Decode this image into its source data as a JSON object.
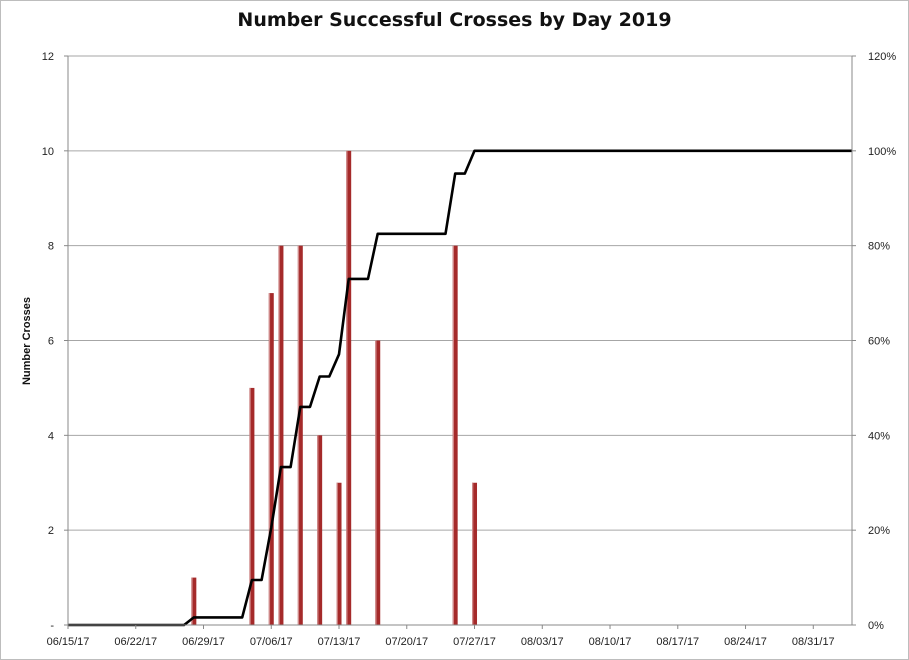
{
  "chart_data": {
    "type": "bar",
    "title": "Number Successful Crosses by Day 2019",
    "ylabel": "Number Crosses",
    "y2label": "",
    "ylim": [
      0,
      12
    ],
    "y2lim": [
      0,
      1.2
    ],
    "y_ticks": [
      0,
      2,
      4,
      6,
      8,
      10,
      12
    ],
    "y_tick_labels": [
      "-",
      "2",
      "4",
      "6",
      "8",
      "10",
      "12"
    ],
    "y2_ticks": [
      0,
      0.2,
      0.4,
      0.6,
      0.8,
      1.0,
      1.2
    ],
    "y2_tick_labels": [
      "0%",
      "20%",
      "40%",
      "60%",
      "80%",
      "100%",
      "120%"
    ],
    "x_range_days": [
      "2017-06-15",
      "2017-09-04"
    ],
    "x_tick_labels": [
      "06/15/17",
      "06/22/17",
      "06/29/17",
      "07/06/17",
      "07/13/17",
      "07/20/17",
      "07/27/17",
      "08/03/17",
      "08/10/17",
      "08/17/17",
      "08/24/17",
      "08/31/17"
    ],
    "x_tick_dates": [
      "2017-06-15",
      "2017-06-22",
      "2017-06-29",
      "2017-07-06",
      "2017-07-13",
      "2017-07-20",
      "2017-07-27",
      "2017-08-03",
      "2017-08-10",
      "2017-08-17",
      "2017-08-24",
      "2017-08-31"
    ],
    "grid": true,
    "series": [
      {
        "type": "bar",
        "color": "#a52a2a",
        "points": [
          {
            "x": "2017-06-28",
            "y": 1
          },
          {
            "x": "2017-07-04",
            "y": 5
          },
          {
            "x": "2017-07-06",
            "y": 7
          },
          {
            "x": "2017-07-07",
            "y": 8
          },
          {
            "x": "2017-07-09",
            "y": 8
          },
          {
            "x": "2017-07-11",
            "y": 4
          },
          {
            "x": "2017-07-13",
            "y": 3
          },
          {
            "x": "2017-07-14",
            "y": 10
          },
          {
            "x": "2017-07-17",
            "y": 6
          },
          {
            "x": "2017-07-25",
            "y": 8
          },
          {
            "x": "2017-07-27",
            "y": 3
          }
        ]
      },
      {
        "type": "line",
        "axis": "right",
        "color": "#000000",
        "points": [
          {
            "x": "2017-06-15",
            "y": 0.0
          },
          {
            "x": "2017-06-27",
            "y": 0.0
          },
          {
            "x": "2017-06-28",
            "y": 0.016
          },
          {
            "x": "2017-07-03",
            "y": 0.016
          },
          {
            "x": "2017-07-04",
            "y": 0.095
          },
          {
            "x": "2017-07-05",
            "y": 0.095
          },
          {
            "x": "2017-07-06",
            "y": 0.206
          },
          {
            "x": "2017-07-07",
            "y": 0.333
          },
          {
            "x": "2017-07-08",
            "y": 0.333
          },
          {
            "x": "2017-07-09",
            "y": 0.46
          },
          {
            "x": "2017-07-10",
            "y": 0.46
          },
          {
            "x": "2017-07-11",
            "y": 0.524
          },
          {
            "x": "2017-07-12",
            "y": 0.524
          },
          {
            "x": "2017-07-13",
            "y": 0.571
          },
          {
            "x": "2017-07-14",
            "y": 0.73
          },
          {
            "x": "2017-07-16",
            "y": 0.73
          },
          {
            "x": "2017-07-17",
            "y": 0.825
          },
          {
            "x": "2017-07-24",
            "y": 0.825
          },
          {
            "x": "2017-07-25",
            "y": 0.952
          },
          {
            "x": "2017-07-26",
            "y": 0.952
          },
          {
            "x": "2017-07-27",
            "y": 1.0
          },
          {
            "x": "2017-09-04",
            "y": 1.0
          }
        ]
      }
    ]
  }
}
